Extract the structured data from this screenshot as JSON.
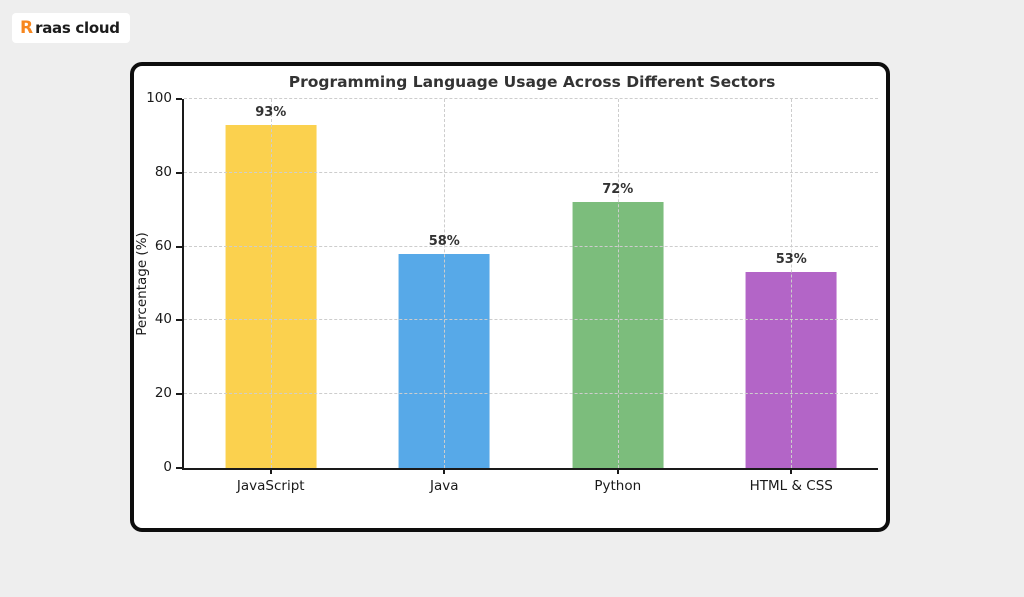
{
  "page": {
    "background": "#EEEEEE"
  },
  "logo": {
    "mark": "R",
    "mark_color": "#F7871E",
    "text": "raas cloud"
  },
  "chart_data": {
    "type": "bar",
    "title": "Programming Language Usage Across Different Sectors",
    "categories": [
      "JavaScript",
      "Java",
      "Python",
      "HTML & CSS"
    ],
    "values": [
      93,
      58,
      72,
      53
    ],
    "value_labels": [
      "93%",
      "58%",
      "72%",
      "53%"
    ],
    "bar_colors": [
      "#FBD14E",
      "#57A9E8",
      "#7CBD7C",
      "#B365C7"
    ],
    "xlabel": "",
    "ylabel": "Percentage (%)",
    "ylim": [
      0,
      100
    ],
    "yticks": [
      0,
      20,
      40,
      60,
      80,
      100
    ],
    "grid": true,
    "grid_style": "dashed",
    "legend": false
  }
}
